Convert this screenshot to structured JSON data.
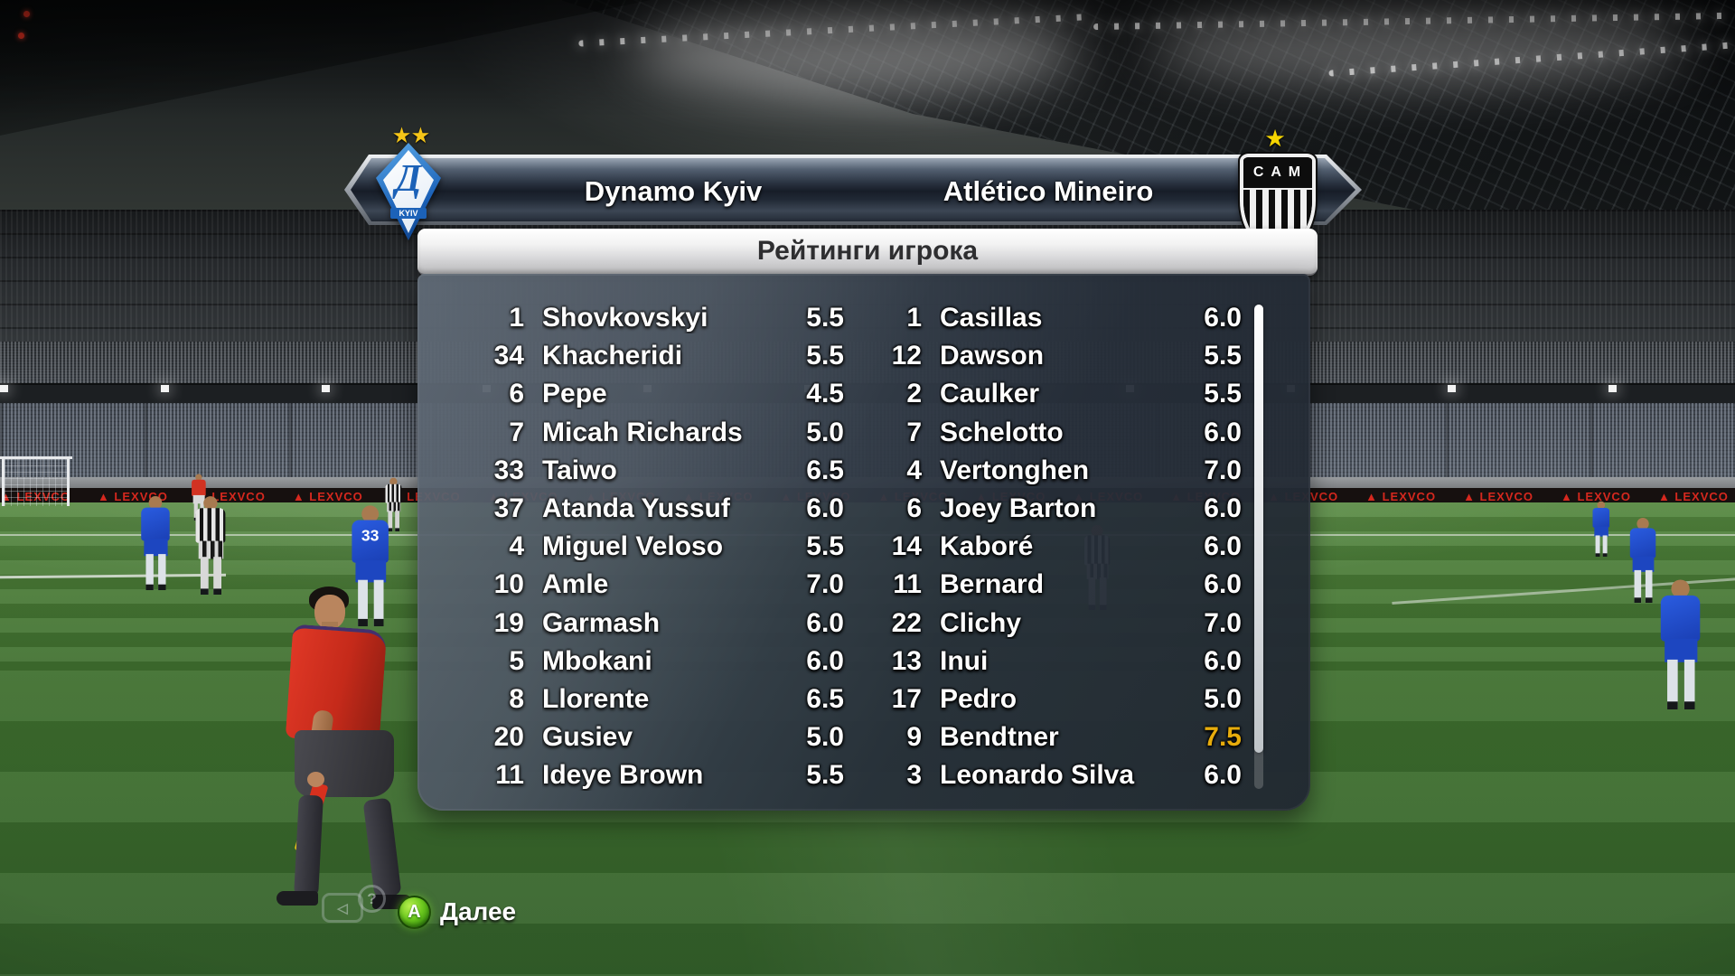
{
  "header": {
    "home_team": "Dynamo Kyiv",
    "away_team": "Atlético Mineiro",
    "home_badge": {
      "stars": "★★",
      "letter": "Д",
      "city": "KYIV"
    },
    "away_badge": {
      "star": "★",
      "initials": "C A M"
    }
  },
  "title_bar": {
    "title": "Рейтинги игрока"
  },
  "ratings": {
    "home": [
      {
        "num": "1",
        "name": "Shovkovskyi",
        "rating": "5.5"
      },
      {
        "num": "34",
        "name": "Khacheridi",
        "rating": "5.5"
      },
      {
        "num": "6",
        "name": "Pepe",
        "rating": "4.5"
      },
      {
        "num": "7",
        "name": "Micah Richards",
        "rating": "5.0"
      },
      {
        "num": "33",
        "name": "Taiwo",
        "rating": "6.5"
      },
      {
        "num": "37",
        "name": "Atanda Yussuf",
        "rating": "6.0"
      },
      {
        "num": "4",
        "name": "Miguel Veloso",
        "rating": "5.5"
      },
      {
        "num": "10",
        "name": "Amle",
        "rating": "7.0"
      },
      {
        "num": "19",
        "name": "Garmash",
        "rating": "6.0"
      },
      {
        "num": "5",
        "name": "Mbokani",
        "rating": "6.0"
      },
      {
        "num": "8",
        "name": "Llorente",
        "rating": "6.5"
      },
      {
        "num": "20",
        "name": "Gusiev",
        "rating": "5.0"
      },
      {
        "num": "11",
        "name": "Ideye Brown",
        "rating": "5.5"
      }
    ],
    "away": [
      {
        "num": "1",
        "name": "Casillas",
        "rating": "6.0"
      },
      {
        "num": "12",
        "name": "Dawson",
        "rating": "5.5"
      },
      {
        "num": "2",
        "name": "Caulker",
        "rating": "5.5"
      },
      {
        "num": "7",
        "name": "Schelotto",
        "rating": "6.0"
      },
      {
        "num": "4",
        "name": "Vertonghen",
        "rating": "7.0"
      },
      {
        "num": "6",
        "name": "Joey Barton",
        "rating": "6.0"
      },
      {
        "num": "14",
        "name": "Kaboré",
        "rating": "6.0"
      },
      {
        "num": "11",
        "name": "Bernard",
        "rating": "6.0"
      },
      {
        "num": "22",
        "name": "Clichy",
        "rating": "7.0"
      },
      {
        "num": "13",
        "name": "Inui",
        "rating": "6.0"
      },
      {
        "num": "17",
        "name": "Pedro",
        "rating": "5.0"
      },
      {
        "num": "9",
        "name": "Bendtner",
        "rating": "7.5",
        "highlight": true
      },
      {
        "num": "3",
        "name": "Leonardo Silva",
        "rating": "6.0"
      }
    ]
  },
  "colors": {
    "highlight_rating": "#e7ac0c",
    "accent_green": "#6cc81e"
  },
  "background": {
    "ad_logo": "▲",
    "ad_text": "LEXVCO",
    "far_player_number": "33"
  },
  "footer": {
    "replay_glyph": "◁",
    "help_glyph": "?",
    "button_glyph": "A",
    "next_label": "Далее"
  }
}
